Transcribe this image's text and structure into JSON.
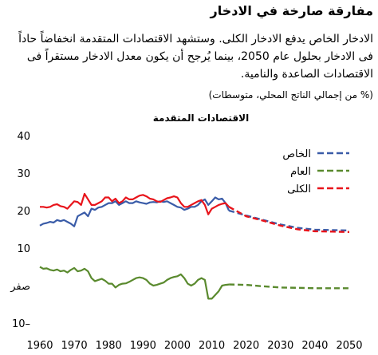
{
  "header": {
    "title": "مفارقة صارخة في الادخار",
    "body": "الادخار الخاص يدفع الادخار الكلى. وستشهد الاقتصادات المتقدمة انخفاضاً حاداً فى الادخار بحلول عام 2050، بينما يُرجح أن يكون معدل الادخار مستقراً فى الاقتصادات الصاعدة والنامية.",
    "units": "(% من إجمالي الناتج المحلي، متوسطات)"
  },
  "chart_data": {
    "type": "line",
    "title": "الاقتصادات المتقدمة",
    "xlim": [
      1960,
      2050
    ],
    "ylim": [
      -10,
      40
    ],
    "x_ticks": [
      {
        "value": 1960,
        "label": "1960"
      },
      {
        "value": 1970,
        "label": "1970"
      },
      {
        "value": 1980,
        "label": "1980"
      },
      {
        "value": 1990,
        "label": "1990"
      },
      {
        "value": 2000,
        "label": "2000"
      },
      {
        "value": 2010,
        "label": "2010"
      },
      {
        "value": 2020,
        "label": "2020"
      },
      {
        "value": 2030,
        "label": "2030"
      },
      {
        "value": 2040,
        "label": "2040"
      },
      {
        "value": 2050,
        "label": "2050"
      }
    ],
    "y_ticks": [
      {
        "value": 40,
        "label": "40"
      },
      {
        "value": 30,
        "label": "30"
      },
      {
        "value": 20,
        "label": "20"
      },
      {
        "value": 10,
        "label": "10"
      },
      {
        "value": 0,
        "label": "صفر"
      },
      {
        "value": -10,
        "label": "10–"
      }
    ],
    "grid": false,
    "legend_position": "top-right",
    "series": [
      {
        "name": "الخاص",
        "color": "#3a5ca8",
        "historical": {
          "x": [
            1960,
            1961,
            1962,
            1963,
            1964,
            1965,
            1966,
            1967,
            1968,
            1969,
            1970,
            1971,
            1972,
            1973,
            1974,
            1975,
            1976,
            1977,
            1978,
            1979,
            1980,
            1981,
            1982,
            1983,
            1984,
            1985,
            1986,
            1987,
            1988,
            1989,
            1990,
            1991,
            1992,
            1993,
            1994,
            1995,
            1996,
            1997,
            1998,
            1999,
            2000,
            2001,
            2002,
            2003,
            2004,
            2005,
            2006,
            2007,
            2008,
            2009,
            2010,
            2011,
            2012,
            2013,
            2014,
            2015
          ],
          "y": [
            16,
            16.5,
            16.7,
            17,
            16.8,
            17.5,
            17.2,
            17.5,
            17,
            16.5,
            15.8,
            18.5,
            19,
            19.5,
            18.5,
            20.5,
            20.2,
            20.8,
            21,
            21.5,
            22,
            22,
            22.5,
            21.5,
            22,
            22.5,
            22,
            22,
            22.5,
            22.2,
            22,
            21.8,
            22.2,
            22.3,
            22.2,
            22.5,
            22.3,
            22.5,
            22,
            21.5,
            21,
            20.8,
            20.2,
            20.5,
            21,
            21,
            21.5,
            22.5,
            23,
            21.5,
            22.5,
            23.5,
            23,
            23.2,
            22,
            20
          ]
        },
        "projection": {
          "x": [
            2015,
            2020,
            2025,
            2030,
            2035,
            2040,
            2045,
            2050
          ],
          "y": [
            20,
            18.7,
            17.5,
            16.3,
            15.4,
            14.9,
            14.8,
            14.7
          ]
        }
      },
      {
        "name": "العام",
        "color": "#5a8a2e",
        "historical": {
          "x": [
            1960,
            1961,
            1962,
            1963,
            1964,
            1965,
            1966,
            1967,
            1968,
            1969,
            1970,
            1971,
            1972,
            1973,
            1974,
            1975,
            1976,
            1977,
            1978,
            1979,
            1980,
            1981,
            1982,
            1983,
            1984,
            1985,
            1986,
            1987,
            1988,
            1989,
            1990,
            1991,
            1992,
            1993,
            1994,
            1995,
            1996,
            1997,
            1998,
            1999,
            2000,
            2001,
            2002,
            2003,
            2004,
            2005,
            2006,
            2007,
            2008,
            2009,
            2010,
            2011,
            2012,
            2013,
            2014,
            2015
          ],
          "y": [
            5,
            4.5,
            4.6,
            4.2,
            4,
            4.3,
            3.8,
            4,
            3.5,
            4.2,
            4.7,
            3.8,
            4,
            4.5,
            3.8,
            2,
            1.2,
            1.5,
            1.8,
            1.3,
            0.5,
            0.5,
            -0.5,
            0.2,
            0.5,
            0.6,
            1,
            1.5,
            2,
            2.2,
            2,
            1.5,
            0.5,
            0,
            0.2,
            0.5,
            0.8,
            1.5,
            2,
            2.3,
            2.5,
            3,
            2,
            0.5,
            0,
            0.5,
            1.5,
            2,
            1.5,
            -3.5,
            -3.5,
            -2.5,
            -1.5,
            0,
            0.2,
            0.3
          ]
        },
        "projection": {
          "x": [
            2015,
            2020,
            2025,
            2030,
            2035,
            2040,
            2045,
            2050
          ],
          "y": [
            0.3,
            0.2,
            -0.2,
            -0.5,
            -0.6,
            -0.7,
            -0.7,
            -0.7
          ]
        }
      },
      {
        "name": "الكلى",
        "color": "#e8141b",
        "historical": {
          "x": [
            1960,
            1961,
            1962,
            1963,
            1964,
            1965,
            1966,
            1967,
            1968,
            1969,
            1970,
            1971,
            1972,
            1973,
            1974,
            1975,
            1976,
            1977,
            1978,
            1979,
            1980,
            1981,
            1982,
            1983,
            1984,
            1985,
            1986,
            1987,
            1988,
            1989,
            1990,
            1991,
            1992,
            1993,
            1994,
            1995,
            1996,
            1997,
            1998,
            1999,
            2000,
            2001,
            2002,
            2003,
            2004,
            2005,
            2006,
            2007,
            2008,
            2009,
            2010,
            2011,
            2012,
            2013,
            2014,
            2015
          ],
          "y": [
            21,
            21,
            20.8,
            21,
            21.5,
            21.7,
            21.2,
            21,
            20.5,
            21.5,
            22.5,
            22.3,
            21.5,
            24.5,
            23,
            21.5,
            21.5,
            22,
            22.5,
            23.5,
            23.5,
            22.5,
            23.2,
            22,
            22.5,
            23.5,
            23,
            23,
            23.5,
            24,
            24.2,
            23.8,
            23.2,
            23,
            22.5,
            22.3,
            22.8,
            23.3,
            23.5,
            23.8,
            23.5,
            22,
            21,
            21,
            21.5,
            22,
            22.5,
            22.8,
            21.5,
            19,
            20.5,
            21,
            21.5,
            21.8,
            22,
            21
          ]
        },
        "projection": {
          "x": [
            2015,
            2020,
            2025,
            2030,
            2035,
            2040,
            2045,
            2050
          ],
          "y": [
            21,
            18.5,
            17.3,
            16,
            15,
            14.5,
            14.4,
            14.3
          ]
        }
      }
    ]
  }
}
